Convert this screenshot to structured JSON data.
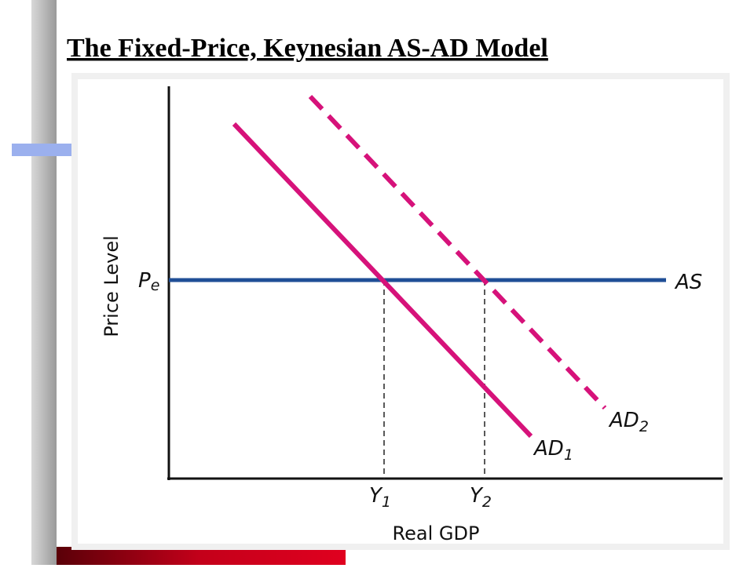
{
  "header": {
    "title": "The Fixed-Price, Keynesian AS-AD Model"
  },
  "diagram": {
    "y_axis_label": "Price Level",
    "x_axis_label": "Real GDP",
    "price_label": {
      "main": "P",
      "sub": "e"
    },
    "as_label": "AS",
    "ad1_label": {
      "main": "AD",
      "sub": "1"
    },
    "ad2_label": {
      "main": "AD",
      "sub": "2"
    },
    "y1_label": {
      "main": "Y",
      "sub": "1"
    },
    "y2_label": {
      "main": "Y",
      "sub": "2"
    }
  }
}
